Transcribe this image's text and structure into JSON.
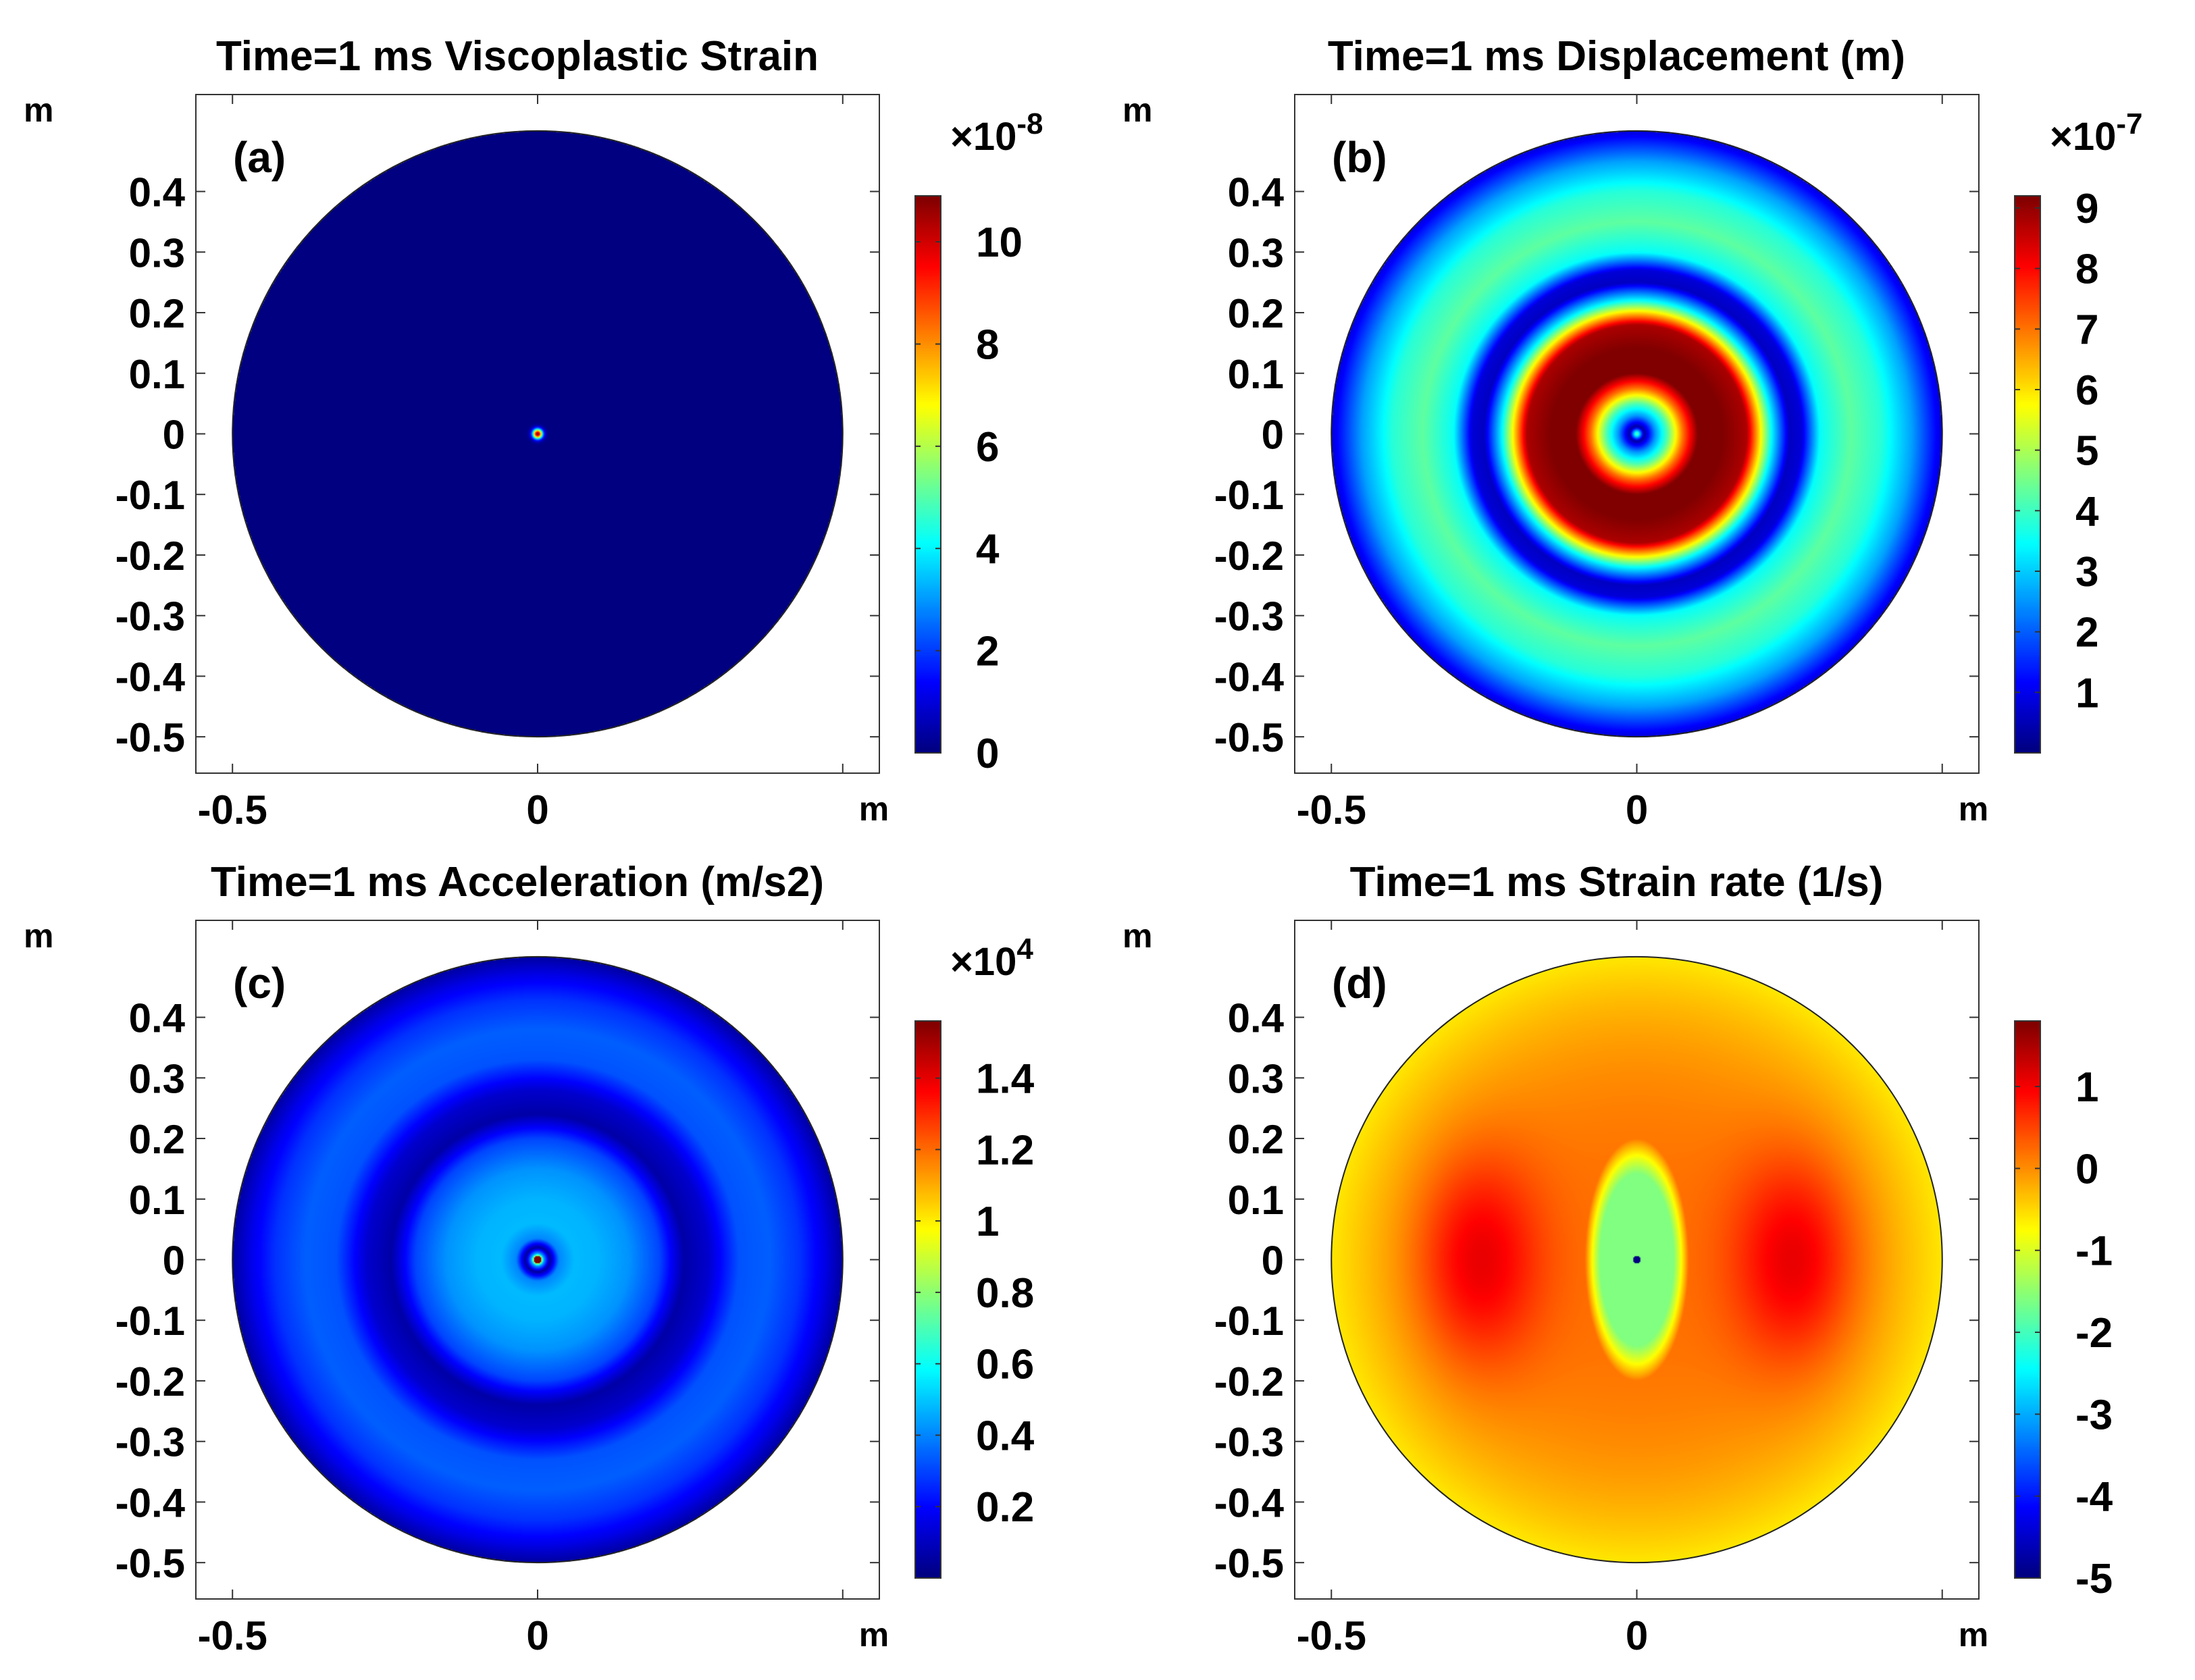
{
  "chart_data": [
    {
      "type": "heatmap",
      "panel_label": "(a)",
      "title": "Time=1 ms Viscoplastic Strain",
      "xlabel": "m",
      "ylabel": "m",
      "xticks": [
        "-0.5",
        "0"
      ],
      "yticks": [
        "0.4",
        "0.3",
        "0.2",
        "0.1",
        "0",
        "-0.1",
        "-0.2",
        "-0.3",
        "-0.4",
        "-0.5"
      ],
      "xlim": [
        -0.56,
        0.56
      ],
      "ylim": [
        -0.56,
        0.56
      ],
      "domain_radius": 0.5,
      "colorbar": {
        "exponent_label": "×10",
        "exponent": "-8",
        "ticks": [
          "0",
          "2",
          "4",
          "6",
          "8",
          "10"
        ],
        "tick_values": [
          0,
          2,
          4,
          6,
          8,
          10
        ],
        "range": [
          0,
          10.9
        ]
      },
      "field": {
        "pattern": "point",
        "background": 0.0,
        "peak": 10.9,
        "core_radius": 0.008
      }
    },
    {
      "type": "heatmap",
      "panel_label": "(b)",
      "title": "Time=1 ms Displacement (m)",
      "xlabel": "m",
      "ylabel": "m",
      "xticks": [
        "-0.5",
        "0"
      ],
      "yticks": [
        "0.4",
        "0.3",
        "0.2",
        "0.1",
        "0",
        "-0.1",
        "-0.2",
        "-0.3",
        "-0.4",
        "-0.5"
      ],
      "xlim": [
        -0.56,
        0.56
      ],
      "ylim": [
        -0.56,
        0.56
      ],
      "domain_radius": 0.5,
      "colorbar": {
        "exponent_label": "×10",
        "exponent": "-7",
        "ticks": [
          "1",
          "2",
          "3",
          "4",
          "5",
          "6",
          "7",
          "8",
          "9"
        ],
        "tick_values": [
          1,
          2,
          3,
          4,
          5,
          6,
          7,
          8,
          9
        ],
        "range": [
          0,
          9.2
        ]
      },
      "field": {
        "pattern": "rings",
        "profile_r": [
          0,
          0.012,
          0.03,
          0.05,
          0.075,
          0.1,
          0.14,
          0.18,
          0.22,
          0.25,
          0.27,
          0.3,
          0.35,
          0.4,
          0.45,
          0.5
        ],
        "profile_v": [
          4.5,
          0.3,
          2.5,
          4.2,
          7.0,
          9.2,
          9.2,
          8.8,
          3.5,
          0.6,
          0.8,
          3.5,
          4.3,
          3.8,
          2.6,
          0.8
        ]
      }
    },
    {
      "type": "heatmap",
      "panel_label": "(c)",
      "title": "Time=1 ms Acceleration (m/s2)",
      "xlabel": "m",
      "ylabel": "m",
      "xticks": [
        "-0.5",
        "0"
      ],
      "yticks": [
        "0.4",
        "0.3",
        "0.2",
        "0.1",
        "0",
        "-0.1",
        "-0.2",
        "-0.3",
        "-0.4",
        "-0.5"
      ],
      "xlim": [
        -0.56,
        0.56
      ],
      "ylim": [
        -0.56,
        0.56
      ],
      "domain_radius": 0.5,
      "colorbar": {
        "exponent_label": "×10",
        "exponent": "4",
        "ticks": [
          "0.2",
          "0.4",
          "0.6",
          "0.8",
          "1",
          "1.2",
          "1.4"
        ],
        "tick_values": [
          0.2,
          0.4,
          0.6,
          0.8,
          1.0,
          1.2,
          1.4
        ],
        "range": [
          0,
          1.56
        ]
      },
      "field": {
        "pattern": "rings",
        "center_peak": 1.56,
        "profile_r": [
          0,
          0.01,
          0.02,
          0.035,
          0.06,
          0.1,
          0.15,
          0.2,
          0.24,
          0.28,
          0.33,
          0.38,
          0.43,
          0.47,
          0.5
        ],
        "profile_v": [
          1.56,
          0.45,
          0.04,
          0.4,
          0.48,
          0.47,
          0.42,
          0.3,
          0.06,
          0.12,
          0.32,
          0.34,
          0.27,
          0.16,
          0.05
        ]
      }
    },
    {
      "type": "heatmap",
      "panel_label": "(d)",
      "title": "Time=1 ms Strain rate (1/s)",
      "xlabel": "m",
      "ylabel": "m",
      "xticks": [
        "-0.5",
        "0"
      ],
      "yticks": [
        "0.4",
        "0.3",
        "0.2",
        "0.1",
        "0",
        "-0.1",
        "-0.2",
        "-0.3",
        "-0.4",
        "-0.5"
      ],
      "xlim": [
        -0.56,
        0.56
      ],
      "ylim": [
        -0.56,
        0.56
      ],
      "domain_radius": 0.5,
      "colorbar": {
        "exponent_label": "",
        "exponent": "",
        "ticks": [
          "1",
          "0",
          "-1",
          "-2",
          "-3",
          "-4",
          "-5"
        ],
        "tick_values": [
          1,
          0,
          -1,
          -2,
          -3,
          -4,
          -5
        ],
        "range": [
          -5,
          1.8
        ]
      },
      "field": {
        "pattern": "lobes",
        "background": 0.2,
        "edge_value": -0.6,
        "lobe_peak": 1.2,
        "lobe_x": 0.26,
        "center_value": -1.6,
        "center_ellipse": [
          0.085,
          0.2
        ],
        "center_point": -5
      }
    }
  ]
}
